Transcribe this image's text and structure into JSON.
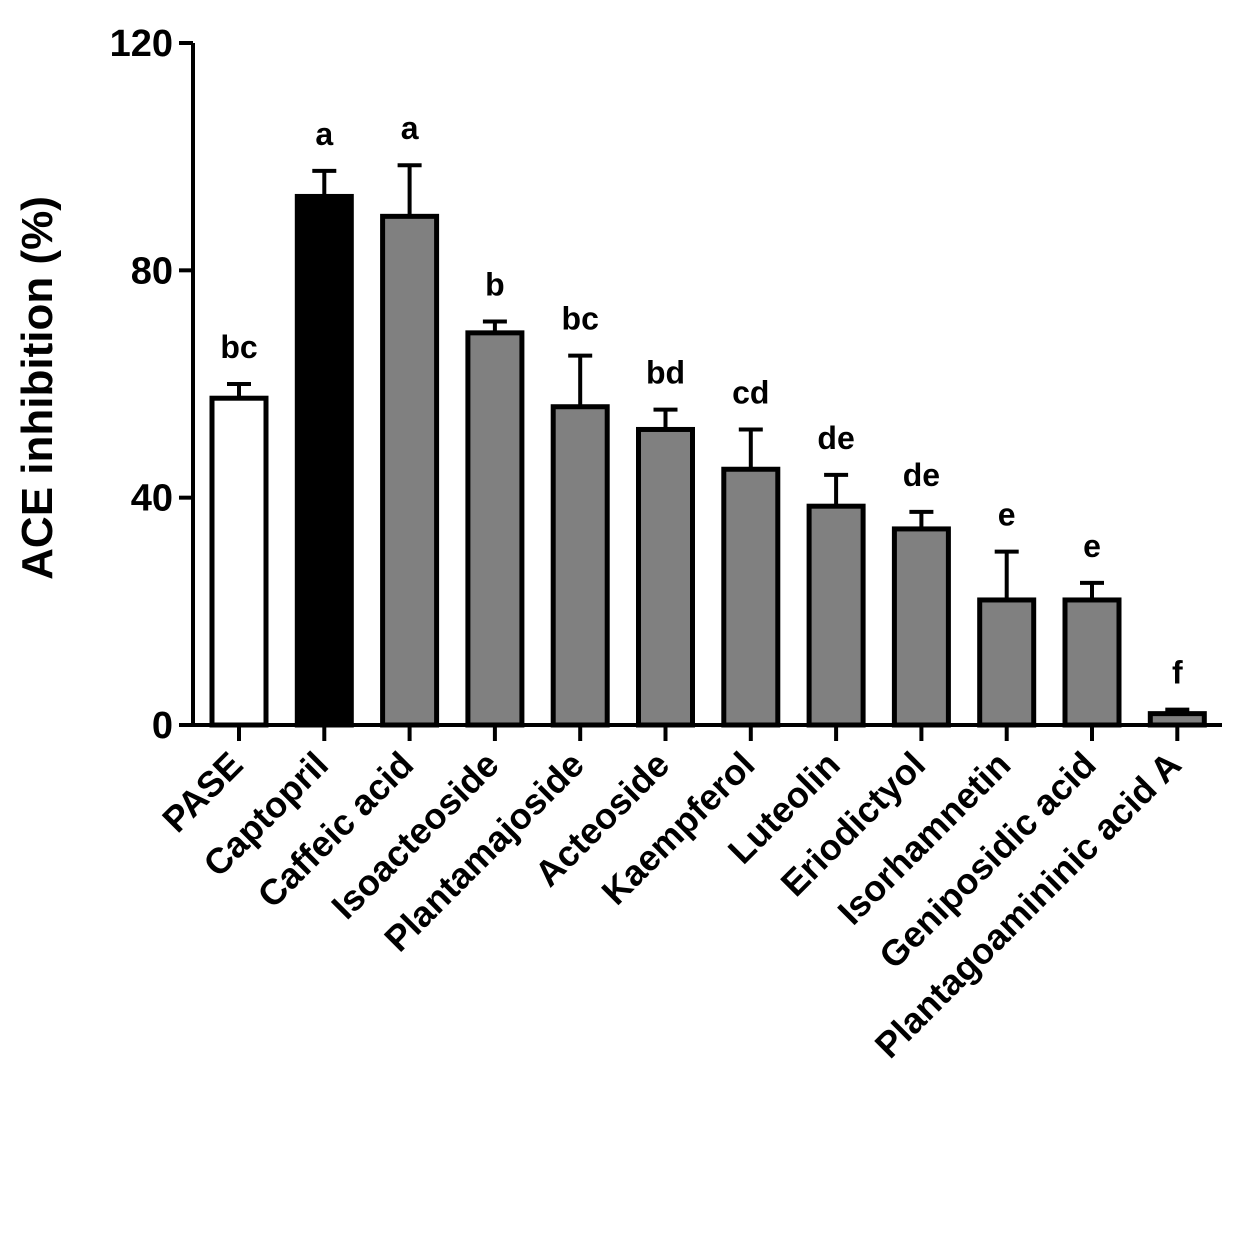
{
  "chart_data": {
    "type": "bar",
    "title": "",
    "xlabel": "",
    "ylabel": "ACE inhibition (%)",
    "ylim": [
      0,
      120
    ],
    "yticks": [
      "0",
      "40",
      "80",
      "120"
    ],
    "grid": false,
    "categories": [
      "PASE",
      "Captopril",
      "Caffeic acid",
      "Isoacteoside",
      "Plantamajoside",
      "Acteoside",
      "Kaempferol",
      "Luteolin",
      "Eriodictyol",
      "Isorhamnetin",
      "Geniposidic acid",
      "Plantagoamininic acid A"
    ],
    "values": [
      57.5,
      93,
      89.5,
      69,
      56,
      52,
      45,
      38.5,
      34.5,
      22,
      22,
      2
    ],
    "errors": [
      2.5,
      4.5,
      9,
      2,
      9,
      3.5,
      7,
      5.5,
      3,
      8.5,
      3,
      0.7
    ],
    "significance_letters": [
      "bc",
      "a",
      "a",
      "b",
      "bc",
      "bd",
      "cd",
      "de",
      "de",
      "e",
      "e",
      "f"
    ],
    "bar_colors": [
      "#ffffff",
      "#000000",
      "#808080",
      "#808080",
      "#808080",
      "#808080",
      "#808080",
      "#808080",
      "#808080",
      "#808080",
      "#808080",
      "#808080"
    ]
  }
}
